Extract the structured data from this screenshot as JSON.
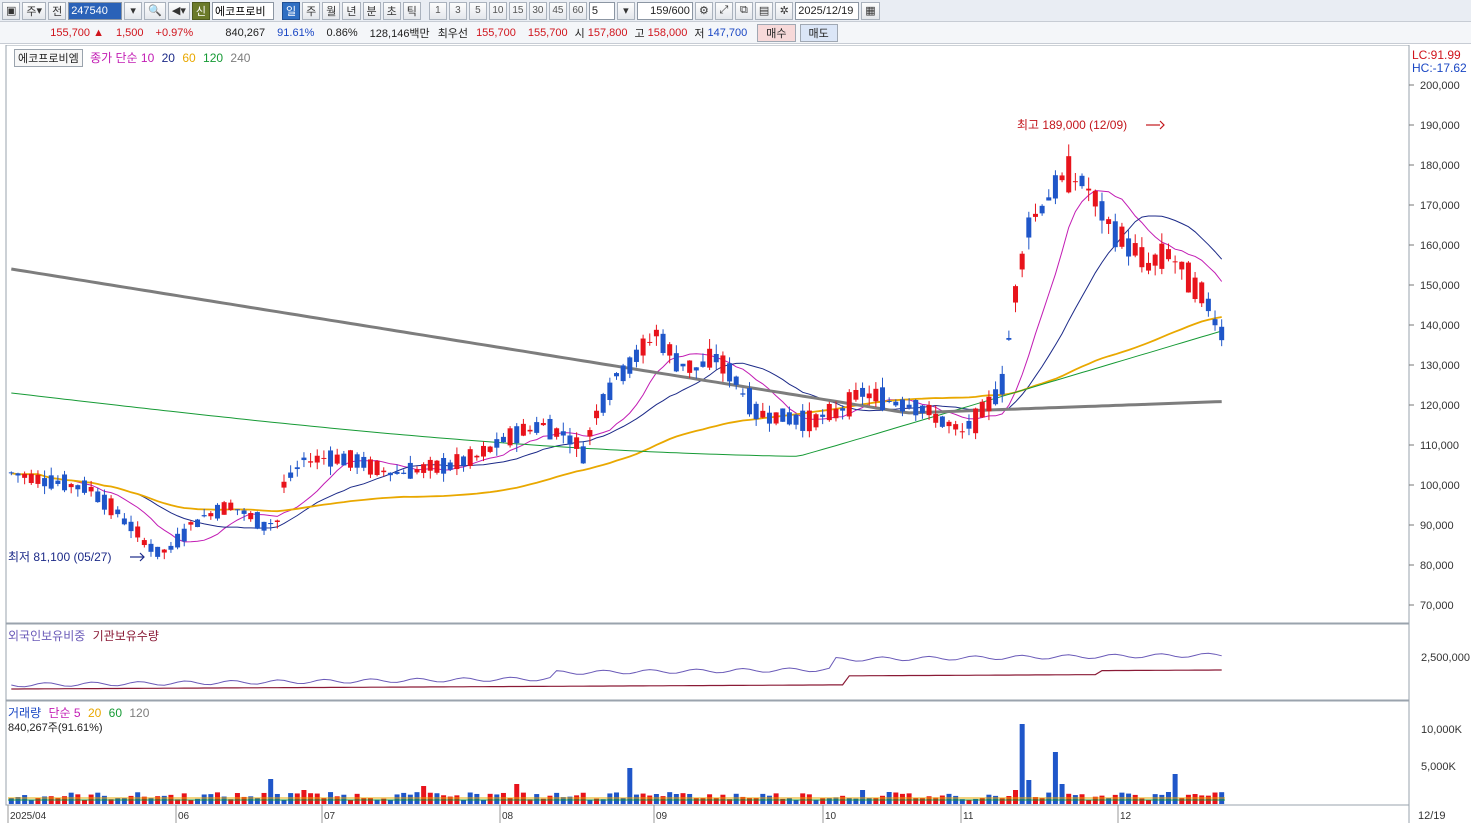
{
  "toolbar": {
    "period_type": "주",
    "all_label": "전",
    "stock_code": "247540",
    "credit_badge": "신",
    "stock_name": "에코프로비",
    "periods": [
      "일",
      "주",
      "월",
      "년",
      "분",
      "초",
      "틱"
    ],
    "active_period": "일",
    "minute_options": [
      "1",
      "3",
      "5",
      "10",
      "15",
      "30",
      "45",
      "60"
    ],
    "minute_count": "5",
    "bars_display": "159",
    "bars_total": "/600",
    "date": "2025/12/19"
  },
  "quote": {
    "price": "155,700",
    "change_arrow": "▲",
    "change": "1,500",
    "change_pct": "+0.97%",
    "volume": "840,267",
    "volume_ratio": "91.61%",
    "turnover_rate": "0.86%",
    "trade_value": "128,146백만",
    "best_bid_label": "최우선",
    "best_ask": "155,700",
    "best_bid": "155,700",
    "open_label": "시",
    "open": "157,800",
    "high_label": "고",
    "high": "158,000",
    "low_label": "저",
    "low": "147,700",
    "buy_label": "매수",
    "sell_label": "매도"
  },
  "price_panel": {
    "stock_label": "에코프로비엠",
    "ma_legend_title": "종가 단순",
    "ma_periods": [
      "10",
      "20",
      "60",
      "120",
      "240"
    ],
    "ma_colors": [
      "#c21cb4",
      "#1c2a88",
      "#e9a800",
      "#169a35",
      "#7d7d7d"
    ],
    "lc_label": "LC:91.99",
    "hc_label": "HC:-17.62",
    "y_ticks": [
      "200,000",
      "190,000",
      "180,000",
      "170,000",
      "160,000",
      "150,000",
      "140,000",
      "130,000",
      "120,000",
      "110,000",
      "100,000",
      "90,000",
      "80,000",
      "70,000"
    ],
    "max_annotation": "최고 189,000 (12/09)",
    "min_annotation": "최저 81,100 (05/27)"
  },
  "holding_panel": {
    "foreign_label": "외국인보유비중",
    "inst_label": "기관보유수량",
    "y_tick": "2,500,000"
  },
  "volume_panel": {
    "title": "거래량",
    "ma_title": "단순",
    "ma_periods": [
      "5",
      "20",
      "60",
      "120"
    ],
    "ma_colors": [
      "#c21cb4",
      "#e9a800",
      "#169a35",
      "#7d7d7d"
    ],
    "current": "840,267주(91.61%)",
    "y_ticks": [
      "10,000K",
      "5,000K"
    ]
  },
  "x_axis": {
    "labels": [
      "2025/04",
      "06",
      "07",
      "08",
      "09",
      "10",
      "11",
      "12"
    ],
    "end_label": "12/19"
  },
  "chart_data": {
    "type": "candlestick",
    "series_ohlc_count": 183,
    "up_color": "#e8131b",
    "down_color": "#1f56c9",
    "price_ylim": [
      65000,
      205000
    ]
  }
}
